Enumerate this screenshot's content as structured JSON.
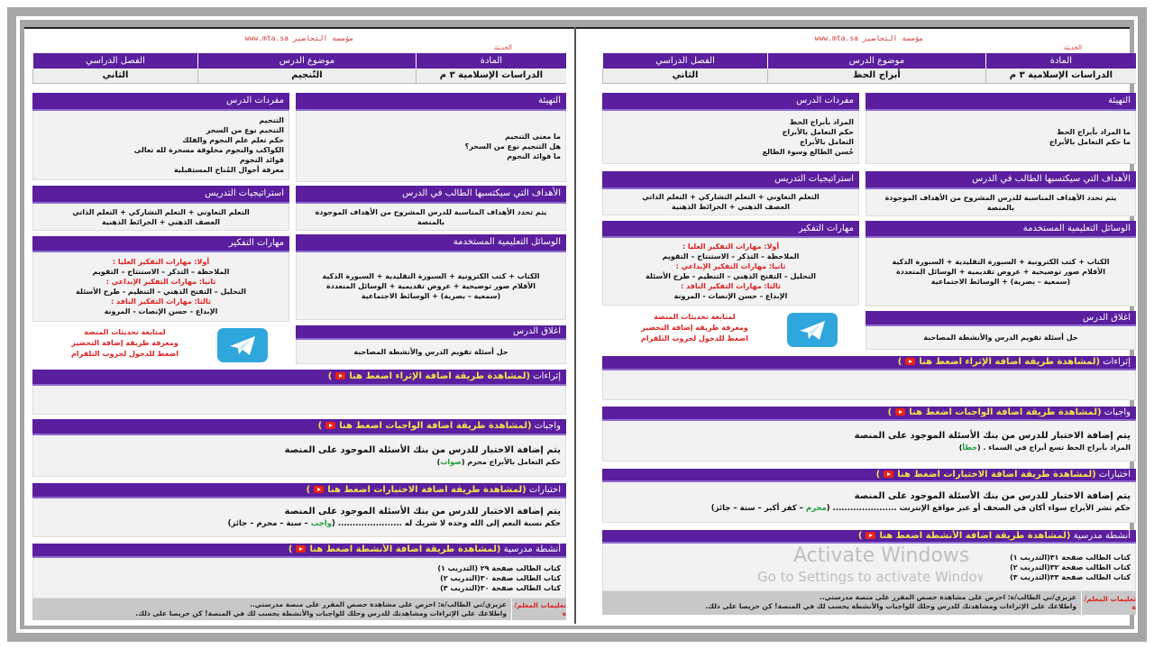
{
  "colors": {
    "header_purple": "#5a1e9e",
    "link_yellow": "#f5e44a",
    "red": "#e02020",
    "green": "#1a9e3a",
    "telegram": "#2fa6dc",
    "youtube": "#e21"
  },
  "pages": [
    {
      "header": {
        "org": "مؤسسة التحاضير www.mta.sa",
        "org2": "الحديثة"
      },
      "table": {
        "headers": [
          "المادة",
          "موضوع الدرس",
          "الفصل الدراسي"
        ],
        "values": [
          "الدراسات الإسلامية ٣ م",
          "التّنجيم",
          "الثاني"
        ]
      },
      "intro": {
        "title": "التهيئة",
        "lines": [
          "ما معنى التنجيم",
          "هل التنجيم نوع من السحر؟",
          "ما فوائد النجوم"
        ]
      },
      "vocab": {
        "title": "مفردات الدرس",
        "lines": [
          "التنجيم",
          "التنجيم نوع من السحر",
          "حكم تعلم علم النجوم والفلك",
          "الكواكب والنجوم مخلوقة مسخرة لله تعالى",
          "فوائد النجوم",
          "معرفة أحوال المُناخ المستقبلية"
        ]
      },
      "goals": {
        "title": "الأهداف التي سيكتسبها الطالب في الدرس",
        "lines": [
          "يتم تحدد الأهداف المناسبة للدرس المشروح من الأهداف الموجودة بالمنصة"
        ]
      },
      "strategies": {
        "title": "استراتيجيات التدريس",
        "lines": [
          "التعلم التعاوني + التعلم التشاركي + التعلم الذاتي",
          "العصف الذهني + الخرائط الذهنية"
        ]
      },
      "media": {
        "title": "الوسائل التعليمية المستخدمة",
        "lines": [
          "الكتاب + كتب الكترونية + السبورة التقليدية + السبورة الذكية",
          "الأقلام    صور توضيحية + عروض تقديمية + الوسائل المتعددة",
          "(سمعية – بصرية) + الوسائط الاجتماعية"
        ]
      },
      "thinking": {
        "title": "مهارات التفكير",
        "items": [
          {
            "text": "أولا: مهارات التفكير العليا :",
            "heading": true
          },
          {
            "text": "الملاحظة – التذكر – الاستنتاج – التقويم",
            "heading": false
          },
          {
            "text": "ثانيا: مهارات التفكير الإبداعي :",
            "heading": true
          },
          {
            "text": "التحليل – التفتح الذهني – التنظيم - طرح الأسئلة",
            "heading": false
          },
          {
            "text": "ثالثا: مهارات التفكير الناقد :",
            "heading": true
          },
          {
            "text": "الإبداع - حسن الإنصات - المرونة",
            "heading": false
          }
        ]
      },
      "closing": {
        "title": "اغلاق الدرس",
        "lines": [
          "حل أسئلة تقويم الدرس والأنشطة المصاحبة"
        ]
      },
      "telegram": {
        "icon": "telegram-icon",
        "lines": [
          "لمتابعة تحديثات المنصة",
          "ومعرفة طريقة إضافة التحضير",
          "اضغط للدخول لجروب التلقرام"
        ]
      },
      "enrichment": {
        "title": "إثراءات",
        "link": "(لمشاهدة طريقة اضافة الإثراء اضغط هنا",
        "link_end": ")"
      },
      "homework": {
        "title": "واجبات",
        "link": "(لمشاهدة طريقة اضافة الواجبات اضغط هنا",
        "link_end": ")",
        "main": "يتم إضافة الاختبار للدرس من بنك الأسئلة الموجود على المنصة",
        "question": "حكم التعامل بالأبراج محرم",
        "answer": "صواب"
      },
      "tests": {
        "title": "اختبارات",
        "link": "(لمشاهدة طريقة اضافة الاختبارات اضغط هنا",
        "link_end": ")",
        "main": "يتم إضافة الاختبار للدرس من بنك الأسئلة الموجود على المنصة",
        "question": "حكم نسبة النعم إلى الله وحده لا شريك له ......................",
        "options": [
          "واجب",
          "سنة",
          "محرم",
          "جائز"
        ],
        "correct_index": 0
      },
      "activities": {
        "title": "أنشطة مدرسية",
        "link": "(لمشاهدة طريقة اضافة الأنشطة اضغط هنا",
        "link_end": ")",
        "lines": [
          "كتاب الطالب صفحة ٢٩ (التدريب ١)",
          "كتاب الطالب صفحة ٣٠(التدريب ٢)",
          "كتاب الطالب صفحة ٣٠(التدريب ٣)"
        ]
      },
      "footer": {
        "label": "تعليمات المعلم/ة",
        "lines": [
          "عزيزي/تي الطالب/ة: احرص على مشاهدة حصص المقرر على منصة مدرستي..",
          "واطلاعك على الإثراءات ومشاهدتك للدرس وحلك للواجبات والأنشطة يحسب لك في المنصة! كن حريصا على ذلك."
        ]
      }
    },
    {
      "header": {
        "org": "مؤسسة التحاضير www.mta.sa",
        "org2": "الحديثة"
      },
      "table": {
        "headers": [
          "المادة",
          "موضوع الدرس",
          "الفصل الدراسي"
        ],
        "values": [
          "الدراسات الإسلامية ٣ م",
          "أبراج الحظ",
          "الثاني"
        ]
      },
      "intro": {
        "title": "التهيئة",
        "lines": [
          "ما المراد بأبراج الحظ",
          "ما حكم التعامل بالأبراج"
        ]
      },
      "vocab": {
        "title": "مفردات الدرس",
        "lines": [
          "المراد بأبراج الحظ",
          "حكم التعامل بالأبراج",
          "التعامل بالأبراج",
          "حُسن الطالع وسوء الطالع"
        ]
      },
      "goals": {
        "title": "الأهداف التي سيكتسبها الطالب في الدرس",
        "lines": [
          "يتم تحدد الأهداف المناسبة للدرس المشروح من الأهداف الموجودة بالمنصة"
        ]
      },
      "strategies": {
        "title": "استراتيجيات التدريس",
        "lines": [
          "التعلم التعاوني + التعلم التشاركي + التعلم الذاتي",
          "العصف الذهني + الخرائط الذهنية"
        ]
      },
      "media": {
        "title": "الوسائل التعليمية المستخدمة",
        "lines": [
          "الكتاب + كتب الكترونية + السبورة التقليدية + السبورة الذكية",
          "الأقلام    صور توضيحية + عروض تقديمية + الوسائل المتعددة",
          "(سمعية – بصرية) + الوسائط الاجتماعية"
        ]
      },
      "thinking": {
        "title": "مهارات التفكير",
        "items": [
          {
            "text": "أولا: مهارات التفكير العليا :",
            "heading": true
          },
          {
            "text": "الملاحظة – التذكر – الاستنتاج – التقويم",
            "heading": false
          },
          {
            "text": "ثانيا: مهارات التفكير الإبداعي :",
            "heading": true
          },
          {
            "text": "التحليل – التفتح الذهني – التنظيم - طرح الأسئلة",
            "heading": false
          },
          {
            "text": "ثالثا: مهارات التفكير الناقد :",
            "heading": true
          },
          {
            "text": "الإبداع - حسن الإنصات - المرونة",
            "heading": false
          }
        ]
      },
      "closing": {
        "title": "اغلاق الدرس",
        "lines": [
          "حل أسئلة تقويم الدرس والأنشطة المصاحبة"
        ]
      },
      "telegram": {
        "icon": "telegram-icon",
        "lines": [
          "لمتابعة تحديثات المنصة",
          "ومعرفة طريقة إضافة التحضير",
          "اضغط للدخول لجروب التلقرام"
        ]
      },
      "enrichment": {
        "title": "إثراءات",
        "link": "(لمشاهدة طريقة اضافة الإثراء اضغط هنا",
        "link_end": ")"
      },
      "homework": {
        "title": "واجبات",
        "link": "(لمشاهدة طريقة اضافة الواجبات اضغط هنا",
        "link_end": ")",
        "main": "يتم إضافة الاختبار للدرس من بنك الأسئلة الموجود على المنصة",
        "question": "المراد بأبراج الحظ تسع أبراج في السماء .",
        "answer": "خطأ"
      },
      "tests": {
        "title": "اختبارات",
        "link": "(لمشاهدة طريقة اضافة الاختبارات اضغط هنا",
        "link_end": ")",
        "main": "يتم إضافة الاختبار للدرس من بنك الأسئلة الموجود على المنصة",
        "question": "حكم نشر الأبراج سواء أكان في الصحف أو عبر مواقع الإنترنت ......................",
        "options": [
          "محرم",
          "كفر أكبر",
          "سنة",
          "جائز"
        ],
        "correct_index": 0
      },
      "activities": {
        "title": "أنشطة مدرسية",
        "link": "(لمشاهدة طريقة اضافة الأنشطة اضغط هنا",
        "link_end": ")",
        "lines": [
          "كتاب الطالب صفحة ٣١(التدريب ١)",
          "كتاب الطالب صفحة ٣٢(التدريب ٢)",
          "كتاب الطالب صفحة ٣٣(التدريب ٣)"
        ]
      },
      "footer": {
        "label": "تعليمات المعلم/ة",
        "lines": [
          "عزيزي/تي الطالب/ة: احرص على مشاهدة حصص المقرر على منصة مدرستي..",
          "واطلاعك على الإثراءات ومشاهدتك للدرس وحلك للواجبات والأنشطة يحسب لك في المنصة! كن حريصا على ذلك."
        ]
      }
    }
  ],
  "watermark": {
    "line1": "Activate Windows",
    "line2": "Go to Settings to activate Windows."
  }
}
